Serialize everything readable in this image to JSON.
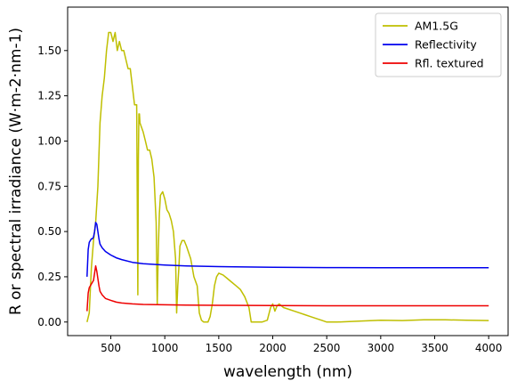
{
  "chart_data": {
    "type": "line",
    "title": "",
    "xlabel": "wavelength (nm)",
    "ylabel": "R or spectral irradiance (W·m-2·nm-1)",
    "xlim": [
      100,
      4180
    ],
    "ylim": [
      -0.075,
      1.74
    ],
    "xticks": [
      500,
      1000,
      1500,
      2000,
      2500,
      3000,
      3500,
      4000
    ],
    "xtick_labels": [
      "500",
      "1000",
      "1500",
      "2000",
      "2500",
      "3000",
      "3500",
      "4000"
    ],
    "yticks": [
      0.0,
      0.25,
      0.5,
      0.75,
      1.0,
      1.25,
      1.5
    ],
    "ytick_labels": [
      "0.00",
      "0.25",
      "0.50",
      "0.75",
      "1.00",
      "1.25",
      "1.50"
    ],
    "grid": false,
    "legend_position": "top-right",
    "series": [
      {
        "name": "AM1.5G",
        "color": "#bfbf00",
        "x": [
          280,
          300,
          320,
          340,
          360,
          380,
          400,
          420,
          440,
          460,
          480,
          500,
          520,
          540,
          560,
          580,
          600,
          620,
          640,
          660,
          680,
          700,
          720,
          740,
          750,
          755,
          760,
          765,
          770,
          800,
          820,
          840,
          860,
          880,
          900,
          920,
          930,
          940,
          950,
          960,
          980,
          1000,
          1020,
          1040,
          1060,
          1080,
          1100,
          1110,
          1120,
          1130,
          1140,
          1160,
          1180,
          1200,
          1240,
          1270,
          1300,
          1320,
          1340,
          1360,
          1380,
          1400,
          1420,
          1440,
          1460,
          1480,
          1500,
          1540,
          1580,
          1620,
          1660,
          1700,
          1740,
          1780,
          1800,
          1850,
          1900,
          1950,
          1980,
          2000,
          2020,
          2040,
          2060,
          2100,
          2150,
          2200,
          2250,
          2300,
          2350,
          2400,
          2450,
          2500,
          2600,
          2800,
          3000,
          3200,
          3400,
          3600,
          3800,
          4000
        ],
        "y": [
          0.0,
          0.05,
          0.3,
          0.45,
          0.55,
          0.75,
          1.1,
          1.25,
          1.35,
          1.5,
          1.6,
          1.6,
          1.55,
          1.6,
          1.5,
          1.55,
          1.5,
          1.5,
          1.45,
          1.4,
          1.4,
          1.3,
          1.2,
          1.2,
          0.15,
          0.9,
          1.15,
          1.15,
          1.1,
          1.05,
          1.0,
          0.95,
          0.95,
          0.9,
          0.8,
          0.55,
          0.1,
          0.4,
          0.6,
          0.7,
          0.72,
          0.68,
          0.62,
          0.6,
          0.56,
          0.5,
          0.35,
          0.05,
          0.2,
          0.3,
          0.42,
          0.45,
          0.45,
          0.42,
          0.35,
          0.25,
          0.2,
          0.05,
          0.01,
          0.0,
          0.0,
          0.0,
          0.03,
          0.1,
          0.2,
          0.25,
          0.27,
          0.26,
          0.24,
          0.22,
          0.2,
          0.18,
          0.14,
          0.08,
          0.0,
          0.0,
          0.0,
          0.01,
          0.08,
          0.1,
          0.06,
          0.09,
          0.1,
          0.08,
          0.07,
          0.06,
          0.05,
          0.04,
          0.03,
          0.02,
          0.01,
          0.0,
          0.0,
          0.005,
          0.01,
          0.008,
          0.012,
          0.012,
          0.01,
          0.008
        ]
      },
      {
        "name": "Reflectivity",
        "color": "#0000ee",
        "x": [
          280,
          290,
          300,
          310,
          320,
          330,
          340,
          350,
          360,
          370,
          380,
          390,
          400,
          420,
          450,
          500,
          550,
          600,
          700,
          800,
          1000,
          1200,
          1500,
          2000,
          2500,
          3000,
          3500,
          4000
        ],
        "y": [
          0.25,
          0.4,
          0.44,
          0.45,
          0.46,
          0.46,
          0.47,
          0.5,
          0.55,
          0.54,
          0.5,
          0.46,
          0.43,
          0.41,
          0.39,
          0.37,
          0.355,
          0.345,
          0.33,
          0.322,
          0.315,
          0.31,
          0.306,
          0.303,
          0.301,
          0.3,
          0.3,
          0.3
        ]
      },
      {
        "name": "Rfl. textured",
        "color": "#ee0000",
        "x": [
          280,
          290,
          300,
          310,
          320,
          330,
          340,
          350,
          360,
          370,
          380,
          390,
          400,
          420,
          450,
          500,
          550,
          600,
          700,
          800,
          1000,
          1200,
          1500,
          2000,
          2500,
          3000,
          3500,
          4000
        ],
        "y": [
          0.06,
          0.16,
          0.19,
          0.2,
          0.21,
          0.22,
          0.23,
          0.27,
          0.31,
          0.28,
          0.24,
          0.2,
          0.17,
          0.15,
          0.13,
          0.12,
          0.11,
          0.105,
          0.1,
          0.097,
          0.095,
          0.093,
          0.092,
          0.091,
          0.09,
          0.09,
          0.09,
          0.09
        ]
      }
    ]
  }
}
